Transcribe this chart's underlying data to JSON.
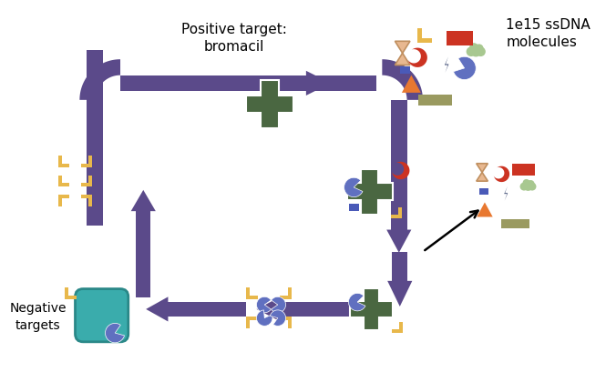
{
  "arrow_color": "#5b4a8a",
  "cross_color": "#4a6741",
  "teal_color": "#3aacac",
  "gold_color": "#e8b84b",
  "blue_shape_color": "#6070c0",
  "red_shape_color": "#cc3322",
  "orange_shape_color": "#e87830",
  "tan_shape_color": "#9a9a60",
  "dark_blue_color": "#1a2a5a",
  "green_cloud_color": "#a8c890",
  "peach_color": "#e8b890",
  "text_positive": "Positive target:\nbromacil",
  "text_ssdna": "1e15 ssDNA\nmolecules",
  "text_negative": "Negative\ntargets",
  "bg_color": "#ffffff"
}
